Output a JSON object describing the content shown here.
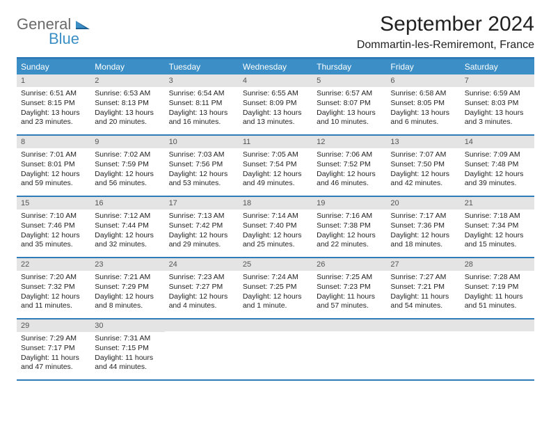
{
  "logo": {
    "text1": "General",
    "text2": "Blue"
  },
  "title": "September 2024",
  "subtitle": "Dommartin-les-Remiremont, France",
  "weekdays": [
    "Sunday",
    "Monday",
    "Tuesday",
    "Wednesday",
    "Thursday",
    "Friday",
    "Saturday"
  ],
  "colors": {
    "header_bar": "#3b8fc6",
    "border": "#2e7bb8",
    "daynum_bg": "#e4e4e4",
    "text": "#222222",
    "logo_gray": "#6a6a6a",
    "logo_blue": "#3b8fc6"
  },
  "weeks": [
    [
      {
        "n": "1",
        "sr": "Sunrise: 6:51 AM",
        "ss": "Sunset: 8:15 PM",
        "d1": "Daylight: 13 hours",
        "d2": "and 23 minutes."
      },
      {
        "n": "2",
        "sr": "Sunrise: 6:53 AM",
        "ss": "Sunset: 8:13 PM",
        "d1": "Daylight: 13 hours",
        "d2": "and 20 minutes."
      },
      {
        "n": "3",
        "sr": "Sunrise: 6:54 AM",
        "ss": "Sunset: 8:11 PM",
        "d1": "Daylight: 13 hours",
        "d2": "and 16 minutes."
      },
      {
        "n": "4",
        "sr": "Sunrise: 6:55 AM",
        "ss": "Sunset: 8:09 PM",
        "d1": "Daylight: 13 hours",
        "d2": "and 13 minutes."
      },
      {
        "n": "5",
        "sr": "Sunrise: 6:57 AM",
        "ss": "Sunset: 8:07 PM",
        "d1": "Daylight: 13 hours",
        "d2": "and 10 minutes."
      },
      {
        "n": "6",
        "sr": "Sunrise: 6:58 AM",
        "ss": "Sunset: 8:05 PM",
        "d1": "Daylight: 13 hours",
        "d2": "and 6 minutes."
      },
      {
        "n": "7",
        "sr": "Sunrise: 6:59 AM",
        "ss": "Sunset: 8:03 PM",
        "d1": "Daylight: 13 hours",
        "d2": "and 3 minutes."
      }
    ],
    [
      {
        "n": "8",
        "sr": "Sunrise: 7:01 AM",
        "ss": "Sunset: 8:01 PM",
        "d1": "Daylight: 12 hours",
        "d2": "and 59 minutes."
      },
      {
        "n": "9",
        "sr": "Sunrise: 7:02 AM",
        "ss": "Sunset: 7:59 PM",
        "d1": "Daylight: 12 hours",
        "d2": "and 56 minutes."
      },
      {
        "n": "10",
        "sr": "Sunrise: 7:03 AM",
        "ss": "Sunset: 7:56 PM",
        "d1": "Daylight: 12 hours",
        "d2": "and 53 minutes."
      },
      {
        "n": "11",
        "sr": "Sunrise: 7:05 AM",
        "ss": "Sunset: 7:54 PM",
        "d1": "Daylight: 12 hours",
        "d2": "and 49 minutes."
      },
      {
        "n": "12",
        "sr": "Sunrise: 7:06 AM",
        "ss": "Sunset: 7:52 PM",
        "d1": "Daylight: 12 hours",
        "d2": "and 46 minutes."
      },
      {
        "n": "13",
        "sr": "Sunrise: 7:07 AM",
        "ss": "Sunset: 7:50 PM",
        "d1": "Daylight: 12 hours",
        "d2": "and 42 minutes."
      },
      {
        "n": "14",
        "sr": "Sunrise: 7:09 AM",
        "ss": "Sunset: 7:48 PM",
        "d1": "Daylight: 12 hours",
        "d2": "and 39 minutes."
      }
    ],
    [
      {
        "n": "15",
        "sr": "Sunrise: 7:10 AM",
        "ss": "Sunset: 7:46 PM",
        "d1": "Daylight: 12 hours",
        "d2": "and 35 minutes."
      },
      {
        "n": "16",
        "sr": "Sunrise: 7:12 AM",
        "ss": "Sunset: 7:44 PM",
        "d1": "Daylight: 12 hours",
        "d2": "and 32 minutes."
      },
      {
        "n": "17",
        "sr": "Sunrise: 7:13 AM",
        "ss": "Sunset: 7:42 PM",
        "d1": "Daylight: 12 hours",
        "d2": "and 29 minutes."
      },
      {
        "n": "18",
        "sr": "Sunrise: 7:14 AM",
        "ss": "Sunset: 7:40 PM",
        "d1": "Daylight: 12 hours",
        "d2": "and 25 minutes."
      },
      {
        "n": "19",
        "sr": "Sunrise: 7:16 AM",
        "ss": "Sunset: 7:38 PM",
        "d1": "Daylight: 12 hours",
        "d2": "and 22 minutes."
      },
      {
        "n": "20",
        "sr": "Sunrise: 7:17 AM",
        "ss": "Sunset: 7:36 PM",
        "d1": "Daylight: 12 hours",
        "d2": "and 18 minutes."
      },
      {
        "n": "21",
        "sr": "Sunrise: 7:18 AM",
        "ss": "Sunset: 7:34 PM",
        "d1": "Daylight: 12 hours",
        "d2": "and 15 minutes."
      }
    ],
    [
      {
        "n": "22",
        "sr": "Sunrise: 7:20 AM",
        "ss": "Sunset: 7:32 PM",
        "d1": "Daylight: 12 hours",
        "d2": "and 11 minutes."
      },
      {
        "n": "23",
        "sr": "Sunrise: 7:21 AM",
        "ss": "Sunset: 7:29 PM",
        "d1": "Daylight: 12 hours",
        "d2": "and 8 minutes."
      },
      {
        "n": "24",
        "sr": "Sunrise: 7:23 AM",
        "ss": "Sunset: 7:27 PM",
        "d1": "Daylight: 12 hours",
        "d2": "and 4 minutes."
      },
      {
        "n": "25",
        "sr": "Sunrise: 7:24 AM",
        "ss": "Sunset: 7:25 PM",
        "d1": "Daylight: 12 hours",
        "d2": "and 1 minute."
      },
      {
        "n": "26",
        "sr": "Sunrise: 7:25 AM",
        "ss": "Sunset: 7:23 PM",
        "d1": "Daylight: 11 hours",
        "d2": "and 57 minutes."
      },
      {
        "n": "27",
        "sr": "Sunrise: 7:27 AM",
        "ss": "Sunset: 7:21 PM",
        "d1": "Daylight: 11 hours",
        "d2": "and 54 minutes."
      },
      {
        "n": "28",
        "sr": "Sunrise: 7:28 AM",
        "ss": "Sunset: 7:19 PM",
        "d1": "Daylight: 11 hours",
        "d2": "and 51 minutes."
      }
    ],
    [
      {
        "n": "29",
        "sr": "Sunrise: 7:29 AM",
        "ss": "Sunset: 7:17 PM",
        "d1": "Daylight: 11 hours",
        "d2": "and 47 minutes."
      },
      {
        "n": "30",
        "sr": "Sunrise: 7:31 AM",
        "ss": "Sunset: 7:15 PM",
        "d1": "Daylight: 11 hours",
        "d2": "and 44 minutes."
      },
      {
        "empty": true
      },
      {
        "empty": true
      },
      {
        "empty": true
      },
      {
        "empty": true
      },
      {
        "empty": true
      }
    ]
  ]
}
